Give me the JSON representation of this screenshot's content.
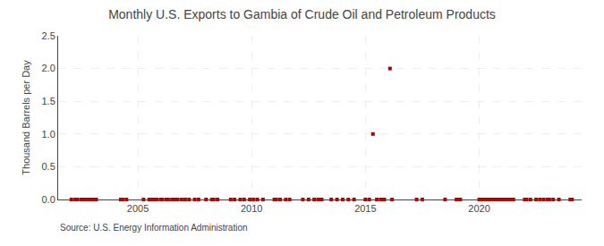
{
  "chart_data": {
    "type": "scatter",
    "title": "Monthly U.S. Exports to Gambia of Crude Oil and Petroleum Products",
    "y_label": "Thousand Barrels per Day",
    "annotations": [
      "Source: U.S. Energy Information Administration"
    ],
    "color": "#AA0000",
    "marker": "square",
    "grid": true,
    "xlim": [
      2001.5,
      2024.5
    ],
    "ylim": [
      0,
      2.5
    ],
    "xticks": [
      2005,
      2010,
      2015,
      2020
    ],
    "yticks": [
      {
        "value": 0.0,
        "label": "0.0"
      },
      0.5,
      {
        "value": 1.0,
        "label": "1.0"
      },
      1.5,
      {
        "value": 2.0,
        "label": "2.0"
      },
      2.5
    ],
    "x": [
      2002.08,
      2002.25,
      2002.33,
      2002.5,
      2002.58,
      2002.67,
      2002.75,
      2002.83,
      2002.92,
      2003.0,
      2003.08,
      2003.17,
      2004.25,
      2004.33,
      2004.5,
      2005.25,
      2005.5,
      2005.58,
      2005.67,
      2005.75,
      2005.83,
      2006.0,
      2006.08,
      2006.25,
      2006.33,
      2006.5,
      2006.58,
      2006.67,
      2006.75,
      2006.92,
      2007.08,
      2007.25,
      2007.5,
      2007.67,
      2008.0,
      2008.25,
      2008.33,
      2008.5,
      2009.08,
      2009.25,
      2009.5,
      2009.67,
      2009.92,
      2010.08,
      2010.25,
      2010.5,
      2011.0,
      2011.08,
      2011.25,
      2011.5,
      2011.67,
      2012.25,
      2012.5,
      2012.75,
      2012.92,
      2013.0,
      2013.08,
      2013.5,
      2013.75,
      2014.0,
      2014.25,
      2014.5,
      2015.0,
      2015.17,
      2015.33,
      2015.5,
      2015.67,
      2015.75,
      2015.83,
      2016.08,
      2016.17,
      2017.25,
      2017.5,
      2018.5,
      2019.0,
      2019.08,
      2019.17,
      2020.0,
      2020.08,
      2020.17,
      2020.25,
      2020.33,
      2020.42,
      2020.5,
      2020.58,
      2020.67,
      2020.75,
      2020.83,
      2020.92,
      2021.0,
      2021.08,
      2021.17,
      2021.25,
      2021.33,
      2021.42,
      2021.5,
      2022.0,
      2022.08,
      2022.25,
      2022.5,
      2022.67,
      2022.83,
      2023.0,
      2023.08,
      2023.25,
      2023.5,
      2024.0,
      2024.08
    ],
    "values": [
      0.0,
      0.0,
      0.0,
      0.0,
      0.0,
      0.0,
      0.0,
      0.0,
      0.0,
      0.0,
      0.0,
      0.0,
      0.0,
      0.0,
      0.0,
      0.0,
      0.0,
      0.0,
      0.0,
      0.0,
      0.0,
      0.0,
      0.0,
      0.0,
      0.0,
      0.0,
      0.0,
      0.0,
      0.0,
      0.0,
      0.0,
      0.0,
      0.0,
      0.0,
      0.0,
      0.0,
      0.0,
      0.0,
      0.0,
      0.0,
      0.0,
      0.0,
      0.0,
      0.0,
      0.0,
      0.0,
      0.0,
      0.0,
      0.0,
      0.0,
      0.0,
      0.0,
      0.0,
      0.0,
      0.0,
      0.0,
      0.0,
      0.0,
      0.0,
      0.0,
      0.0,
      0.0,
      0.0,
      0.0,
      1.0,
      0.0,
      0.0,
      0.0,
      0.0,
      2.0,
      0.0,
      0.0,
      0.0,
      0.0,
      0.0,
      0.0,
      0.0,
      0.0,
      0.0,
      0.0,
      0.0,
      0.0,
      0.0,
      0.0,
      0.0,
      0.0,
      0.0,
      0.0,
      0.0,
      0.0,
      0.0,
      0.0,
      0.0,
      0.0,
      0.0,
      0.0,
      0.0,
      0.0,
      0.0,
      0.0,
      0.0,
      0.0,
      0.0,
      0.0,
      0.0,
      0.0,
      0.0,
      0.0
    ]
  }
}
